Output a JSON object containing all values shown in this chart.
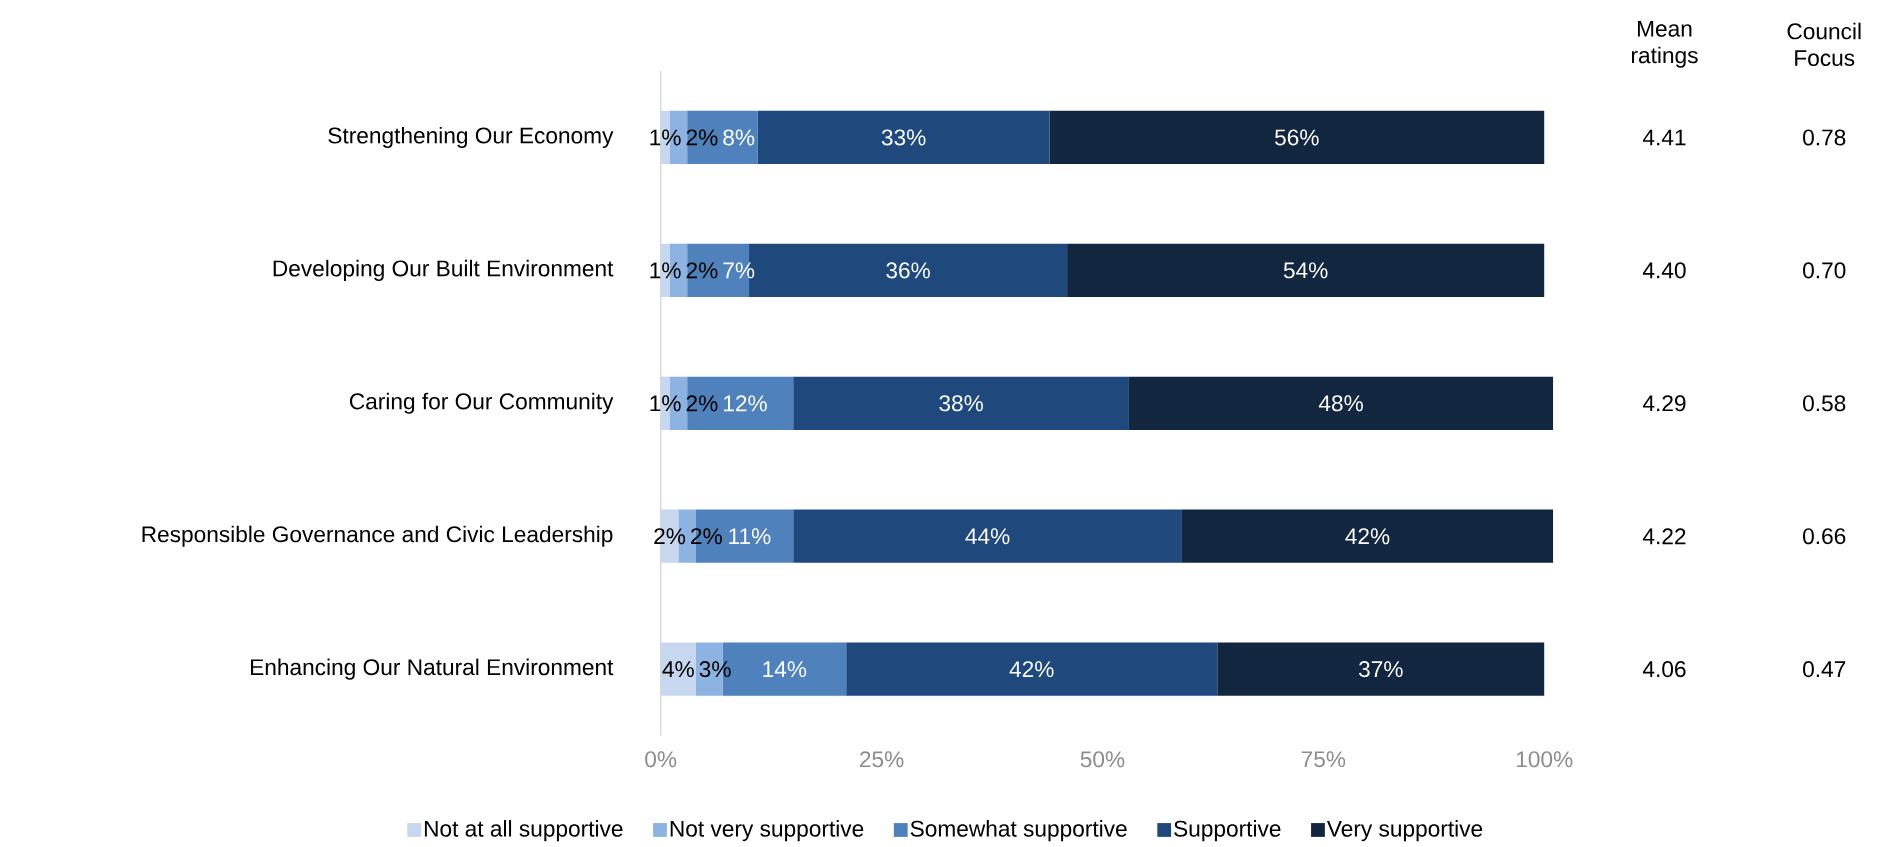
{
  "chart_data": {
    "type": "bar",
    "orientation": "horizontal",
    "stacked": true,
    "legend": "bottom",
    "categories": [
      "Strengthening Our Economy",
      "Developing Our Built Environment",
      "Caring for Our Community",
      "Responsible Governance and Civic Leadership",
      "Enhancing Our Natural Environment"
    ],
    "xlim": [
      0,
      101
    ],
    "xticks": [
      {
        "value": 0,
        "label": "0%"
      },
      {
        "value": 25,
        "label": "25%"
      },
      {
        "value": 50,
        "label": "50%"
      },
      {
        "value": 75,
        "label": "75%"
      },
      {
        "value": 100,
        "label": "100%"
      }
    ],
    "series": [
      {
        "name": "Not at all supportive",
        "color": "#c6d7ef",
        "values": [
          1,
          1,
          1,
          2,
          4
        ],
        "value_labels": [
          "1%",
          "1%",
          "1%",
          "2%",
          "4%"
        ]
      },
      {
        "name": "Not very supportive",
        "color": "#8db3e2",
        "values": [
          2,
          2,
          2,
          2,
          3
        ],
        "value_labels": [
          "2%",
          "2%",
          "2%",
          "2%",
          "3%"
        ]
      },
      {
        "name": "Somewhat supportive",
        "color": "#4f81bd",
        "values": [
          8,
          7,
          12,
          11,
          14
        ],
        "value_labels": [
          "8%",
          "7%",
          "12%",
          "11%",
          "14%"
        ]
      },
      {
        "name": "Supportive",
        "color": "#1f497d",
        "values": [
          33,
          36,
          38,
          44,
          42
        ],
        "value_labels": [
          "33%",
          "36%",
          "38%",
          "44%",
          "42%"
        ]
      },
      {
        "name": "Very supportive",
        "color": "#12263f",
        "values": [
          56,
          54,
          48,
          42,
          37
        ],
        "value_labels": [
          "56%",
          "54%",
          "48%",
          "42%",
          "37%"
        ]
      }
    ],
    "annotations": [
      "Mean ratings",
      "4.41",
      "4.40",
      "4.29",
      "4.22",
      "4.06",
      "Council Focus",
      "0.78",
      "0.70",
      "0.58",
      "0.66",
      "0.47"
    ]
  }
}
